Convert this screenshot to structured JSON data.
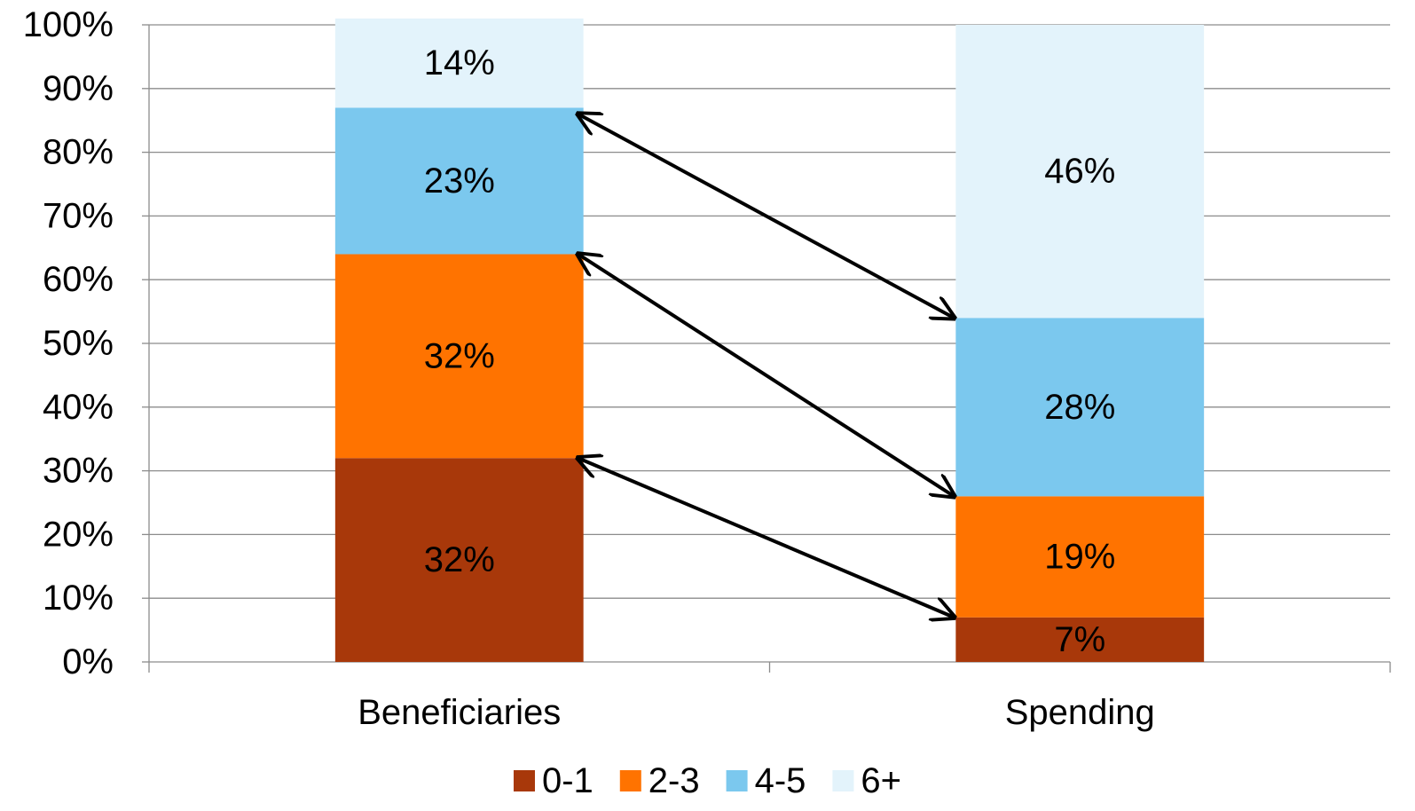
{
  "chart_data": {
    "type": "bar",
    "stacked": true,
    "categories": [
      "Beneficiaries",
      "Spending"
    ],
    "series": [
      {
        "name": "0-1",
        "color": "#A8380A",
        "values": [
          32,
          7
        ]
      },
      {
        "name": "2-3",
        "color": "#FF7300",
        "values": [
          32,
          19
        ]
      },
      {
        "name": "4-5",
        "color": "#7BC8EE",
        "values": [
          23,
          28
        ]
      },
      {
        "name": "6+",
        "color": "#E3F3FB",
        "values": [
          14,
          46
        ]
      }
    ],
    "data_labels": [
      [
        "32%",
        "7%"
      ],
      [
        "32%",
        "19%"
      ],
      [
        "23%",
        "28%"
      ],
      [
        "14%",
        "46%"
      ]
    ],
    "ylim": [
      0,
      100
    ],
    "yticks": [
      0,
      10,
      20,
      30,
      40,
      50,
      60,
      70,
      80,
      90,
      100
    ],
    "ytick_labels": [
      "0%",
      "10%",
      "20%",
      "30%",
      "40%",
      "50%",
      "60%",
      "70%",
      "80%",
      "90%",
      "100%"
    ],
    "grid": true,
    "legend": "bottom",
    "annotations": [
      {
        "type": "double-arrow",
        "from": [
          "Beneficiaries",
          86
        ],
        "to": [
          "Spending",
          54
        ]
      },
      {
        "type": "double-arrow",
        "from": [
          "Beneficiaries",
          64
        ],
        "to": [
          "Spending",
          26
        ]
      },
      {
        "type": "double-arrow",
        "from": [
          "Beneficiaries",
          32
        ],
        "to": [
          "Spending",
          7
        ]
      }
    ]
  }
}
